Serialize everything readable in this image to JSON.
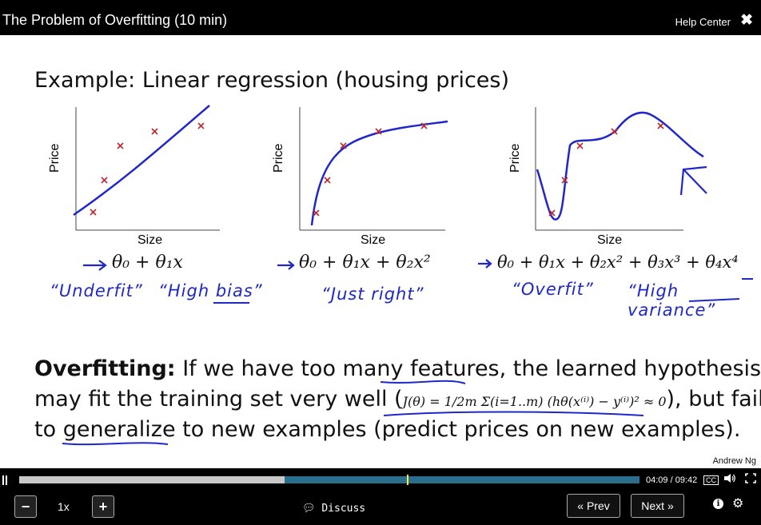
{
  "window": {
    "title": "The Problem of Overfitting (10 min)",
    "help_label": "Help Center",
    "close_glyph": "✖"
  },
  "slide": {
    "title": "Example: Linear regression (housing prices)",
    "axis_y_label": "Price",
    "axis_x_label": "Size",
    "hypotheses": [
      "θ₀ + θ₁x",
      "θ₀ + θ₁x + θ₂x²",
      "θ₀ + θ₁x + θ₂x² + θ₃x³ + θ₄x⁴"
    ],
    "annotations": [
      [
        "“Underfit”",
        "“High bias”"
      ],
      [
        "“Just right”"
      ],
      [
        "“Overfit”",
        "“High variance”"
      ]
    ],
    "body": {
      "bold": "Overfitting:",
      "line1_rest": " If we have too many features, the learned hypothesis",
      "line2_start": "may fit the training set very well (",
      "equation": "J(θ) = 1/2m Σ(i=1..m) (hθ(x⁽ⁱ⁾) − y⁽ⁱ⁾)² ≈ 0",
      "line2_end": "), but fail",
      "line3": "to generalize to new examples (predict prices on new examples)."
    },
    "author": "Andrew Ng"
  },
  "player": {
    "time": "04:09 / 09:42",
    "cc_label": "CC",
    "speed": "1x",
    "minus": "−",
    "plus": "+",
    "discuss": "Discuss",
    "prev": "« Prev",
    "next": "Next »",
    "progress_fraction": 0.428
  }
}
